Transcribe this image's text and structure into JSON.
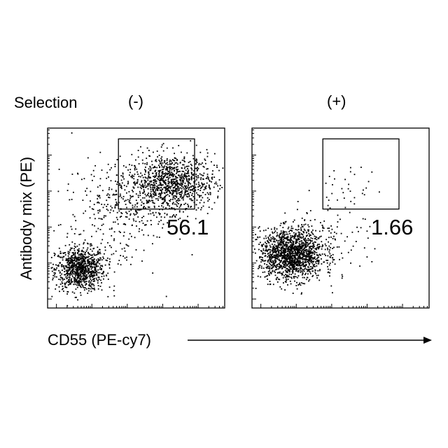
{
  "header": {
    "selection_label": "Selection",
    "conditions": [
      "(-)",
      "(+)"
    ]
  },
  "axes": {
    "ylabel": "Antibody mix (PE)",
    "xlabel": "CD55 (PE-cy7)"
  },
  "chart_data": [
    {
      "type": "scatter",
      "condition": "(-)",
      "xlabel": "CD55 (PE-cy7)",
      "ylabel": "Antibody mix (PE)",
      "gate_percent": "56.1",
      "populations": [
        {
          "center": [
            0.18,
            0.22
          ],
          "spread": [
            0.07,
            0.06
          ],
          "count": 900
        },
        {
          "center": [
            0.7,
            0.7
          ],
          "spread": [
            0.12,
            0.08
          ],
          "count": 1000
        },
        {
          "center": [
            0.45,
            0.62
          ],
          "spread": [
            0.16,
            0.1
          ],
          "count": 220
        },
        {
          "center": [
            0.35,
            0.45
          ],
          "spread": [
            0.14,
            0.15
          ],
          "count": 160
        }
      ],
      "gate": {
        "x": [
          0.4,
          0.83
        ],
        "y": [
          0.55,
          0.94
        ]
      }
    },
    {
      "type": "scatter",
      "condition": "(+)",
      "xlabel": "CD55 (PE-cy7)",
      "ylabel": "Antibody mix (PE)",
      "gate_percent": "1.66",
      "populations": [
        {
          "center": [
            0.22,
            0.3
          ],
          "spread": [
            0.09,
            0.07
          ],
          "count": 1500
        },
        {
          "center": [
            0.42,
            0.42
          ],
          "spread": [
            0.12,
            0.1
          ],
          "count": 110
        },
        {
          "center": [
            0.55,
            0.65
          ],
          "spread": [
            0.08,
            0.07
          ],
          "count": 30
        }
      ],
      "gate": {
        "x": [
          0.4,
          0.83
        ],
        "y": [
          0.55,
          0.94
        ]
      }
    }
  ]
}
